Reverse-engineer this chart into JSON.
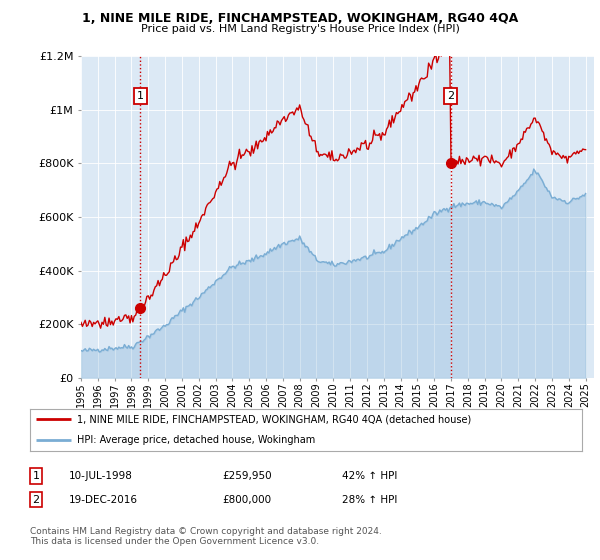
{
  "title": "1, NINE MILE RIDE, FINCHAMPSTEAD, WOKINGHAM, RG40 4QA",
  "subtitle": "Price paid vs. HM Land Registry's House Price Index (HPI)",
  "legend_line1": "1, NINE MILE RIDE, FINCHAMPSTEAD, WOKINGHAM, RG40 4QA (detached house)",
  "legend_line2": "HPI: Average price, detached house, Wokingham",
  "transaction1_label": "1",
  "transaction1_date": "10-JUL-1998",
  "transaction1_price": "£259,950",
  "transaction1_hpi": "42% ↑ HPI",
  "transaction2_label": "2",
  "transaction2_date": "19-DEC-2016",
  "transaction2_price": "£800,000",
  "transaction2_hpi": "28% ↑ HPI",
  "footer": "Contains HM Land Registry data © Crown copyright and database right 2024.\nThis data is licensed under the Open Government Licence v3.0.",
  "red_color": "#cc0000",
  "blue_color": "#7aadd4",
  "plot_bg_color": "#dce9f5",
  "background_color": "#ffffff",
  "grid_color": "#ffffff",
  "ylim": [
    0,
    1200000
  ],
  "xlim_start": 1995.0,
  "xlim_end": 2025.5,
  "transaction1_x": 1998.53,
  "transaction1_y": 259950,
  "transaction2_x": 2016.97,
  "transaction2_y": 800000,
  "ytick_values": [
    0,
    200000,
    400000,
    600000,
    800000,
    1000000,
    1200000
  ],
  "ytick_labels": [
    "£0",
    "£200K",
    "£400K",
    "£600K",
    "£800K",
    "£1M",
    "£1.2M"
  ],
  "xtick_years": [
    1995,
    1996,
    1997,
    1998,
    1999,
    2000,
    2001,
    2002,
    2003,
    2004,
    2005,
    2006,
    2007,
    2008,
    2009,
    2010,
    2011,
    2012,
    2013,
    2014,
    2015,
    2016,
    2017,
    2018,
    2019,
    2020,
    2021,
    2022,
    2023,
    2024,
    2025
  ]
}
